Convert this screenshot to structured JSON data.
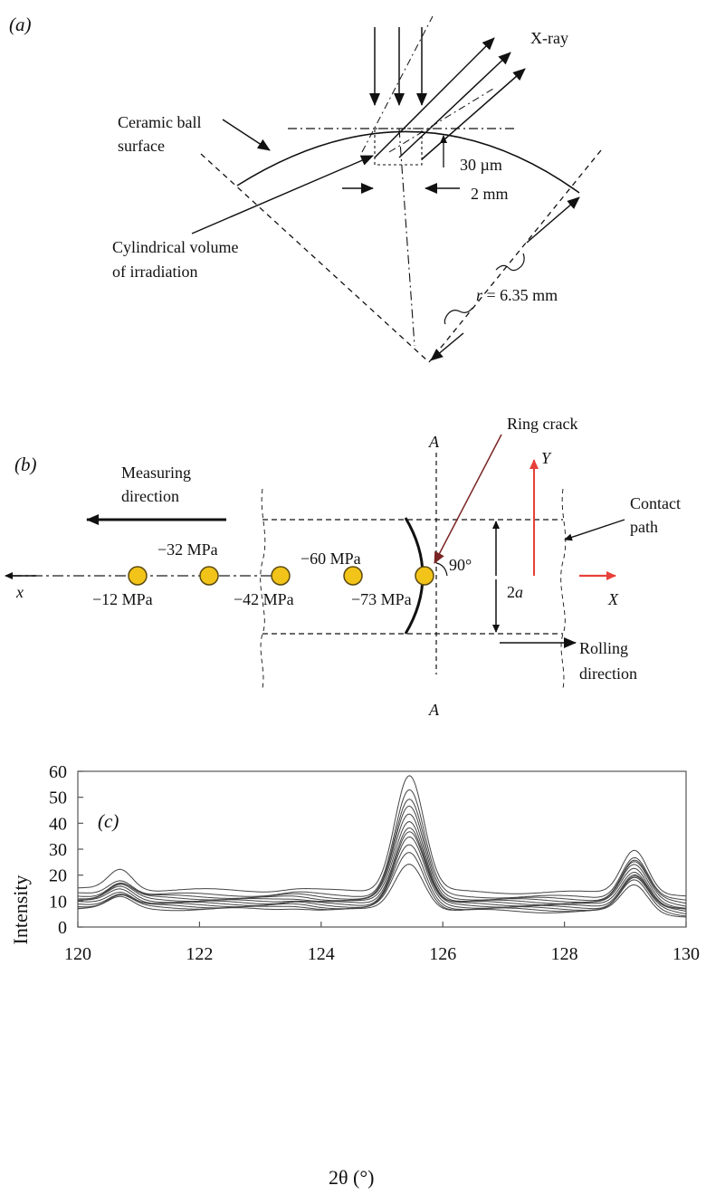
{
  "panel_a": {
    "label": "(a)",
    "xray": "X-ray",
    "ball_surface_line1": "Ceramic ball",
    "ball_surface_line2": "surface",
    "depth": "30 µm",
    "width": "2 mm",
    "volume_line1": "Cylindrical volume",
    "volume_line2": "of irradiation",
    "radius_var": "r",
    "radius_value": " = 6.35 mm"
  },
  "panel_b": {
    "label": "(b)",
    "ring_crack": "Ring crack",
    "measuring_line1": "Measuring",
    "measuring_line2": "direction",
    "contact_line1": "Contact",
    "contact_line2": "path",
    "rolling_line1": "Rolling",
    "rolling_line2": "direction",
    "section_top": "A",
    "section_bottom": "A",
    "axis_y": "Y",
    "axis_X": "X",
    "axis_x": "x",
    "angle": "90°",
    "width_num": "2",
    "width_var": "a",
    "stress_labels": [
      "−12 MPa",
      "−32 MPa",
      "−42 MPa",
      "−60 MPa",
      "−73 MPa"
    ],
    "colors": {
      "marker": "#f2c318",
      "marker_edge": "#5a4a10",
      "axis_red": "#e8403a",
      "ring_crack_arrow": "#7a2525"
    }
  },
  "chart_data": {
    "type": "line",
    "panel_label": "(c)",
    "xlabel": "2θ (°)",
    "ylabel": "Intensity",
    "xlim": [
      120,
      130
    ],
    "ylim": [
      0,
      60
    ],
    "xticks": [
      120,
      122,
      124,
      126,
      128,
      130
    ],
    "yticks": [
      0,
      10,
      20,
      30,
      40,
      50,
      60
    ],
    "grid": false,
    "legend": "none",
    "curve_count": 12,
    "peak1": {
      "x": 120.7,
      "heights_above_baseline": [
        22.5,
        18.5,
        17.5,
        16.8,
        16.0,
        15.3,
        14.8,
        14.0,
        13.3,
        12.7,
        12.0,
        11.3
      ]
    },
    "peak2": {
      "x": 125.45,
      "heights_above_baseline": [
        59.5,
        53.5,
        49.5,
        47.0,
        44.5,
        42.0,
        39.5,
        37.5,
        35.0,
        32.0,
        29.5,
        25.5
      ]
    },
    "peak3": {
      "x": 129.15,
      "heights_above_baseline": [
        31.5,
        28.5,
        27.0,
        26.0,
        25.0,
        24.0,
        23.0,
        22.0,
        21.0,
        20.0,
        19.0,
        17.5
      ]
    },
    "baselines_at_120": [
      14.5,
      12.8,
      12.0,
      11.4,
      10.8,
      10.3,
      9.8,
      9.3,
      8.8,
      8.3,
      7.8,
      7.2
    ]
  }
}
